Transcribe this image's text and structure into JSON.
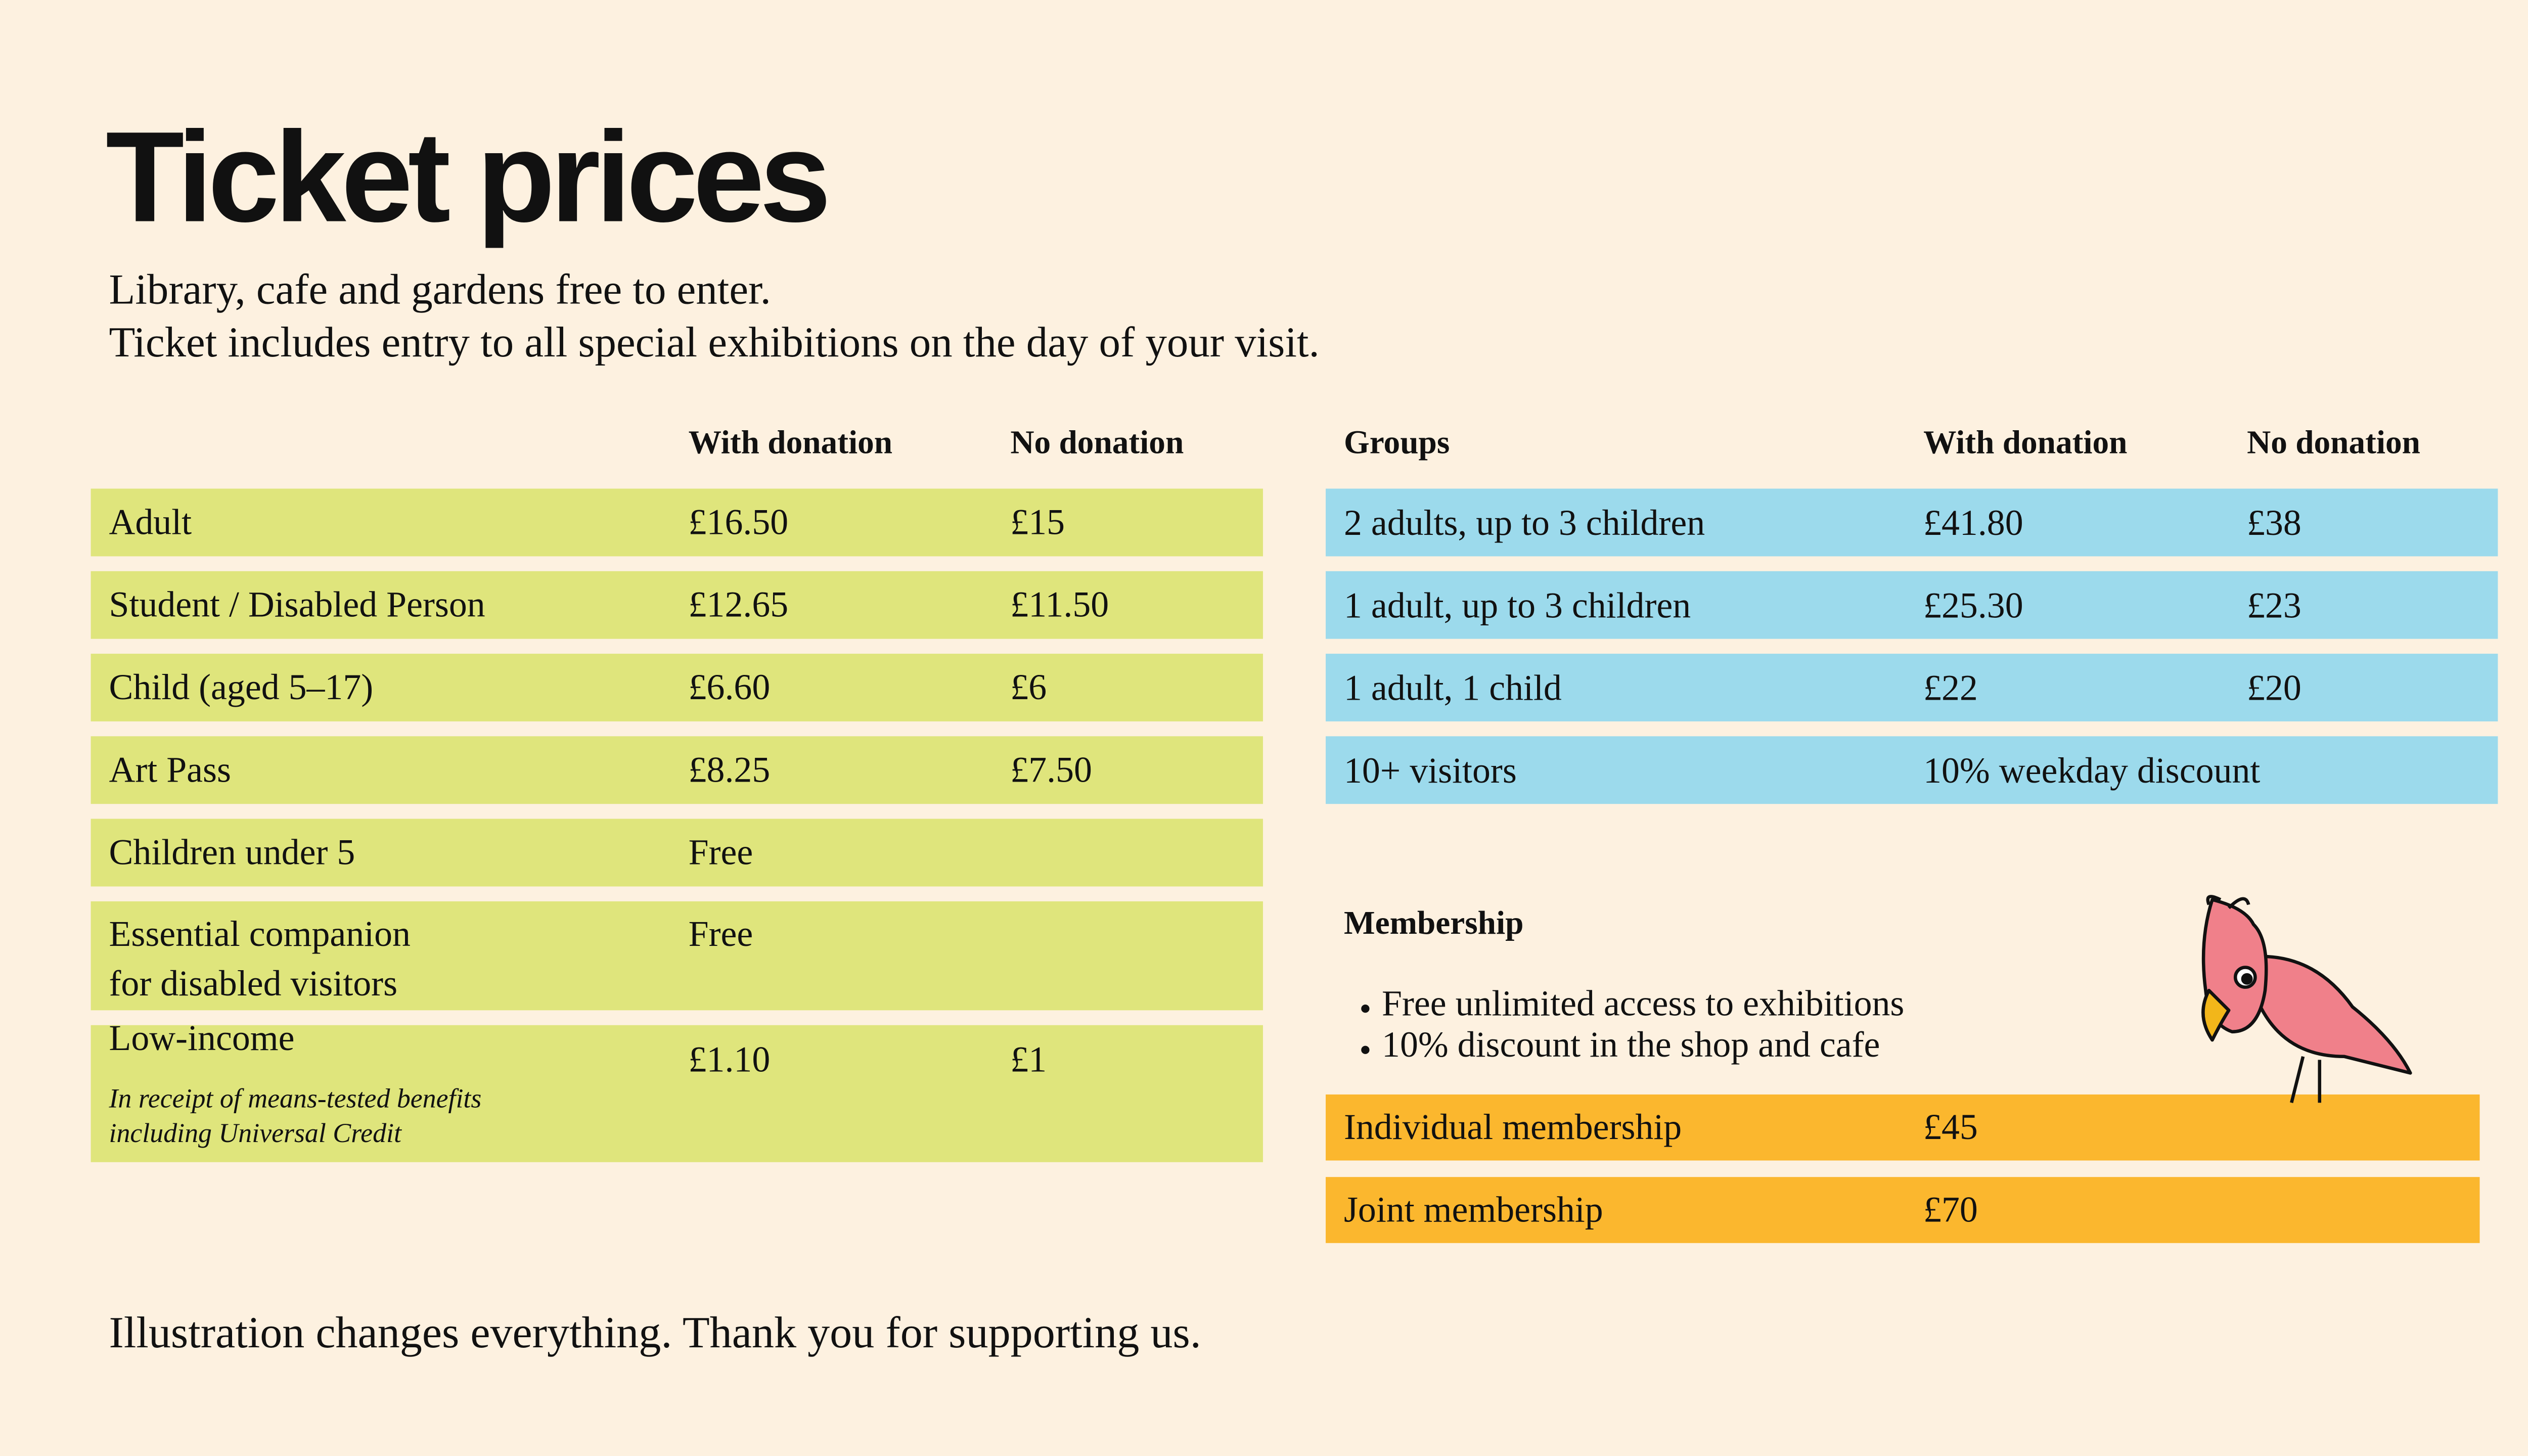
{
  "title": "Ticket prices",
  "intro": [
    "Library, cafe and gardens free to enter.",
    "Ticket includes entry to all special exhibitions on the day of your visit."
  ],
  "tickets": {
    "headers": [
      "With donation",
      "No donation"
    ],
    "rows": [
      {
        "label": [
          "Adult"
        ],
        "with_donation": "£16.50",
        "no_donation": "£15"
      },
      {
        "label": [
          "Student / Disabled Person"
        ],
        "with_donation": "£12.65",
        "no_donation": "£11.50"
      },
      {
        "label": [
          "Child (aged 5–17)"
        ],
        "with_donation": "£6.60",
        "no_donation": "£6"
      },
      {
        "label": [
          "Art Pass"
        ],
        "with_donation": "£8.25",
        "no_donation": "£7.50"
      },
      {
        "label": [
          "Children under 5"
        ],
        "with_donation": "Free"
      },
      {
        "label": [
          "Essential companion",
          "for disabled visitors"
        ],
        "with_donation": "Free"
      },
      {
        "label": [
          "Low-income"
        ],
        "note": [
          "In receipt of means-tested benefits",
          "including Universal Credit"
        ],
        "with_donation": "£1.10",
        "no_donation": "£1"
      }
    ]
  },
  "groups": {
    "headers": [
      "Groups",
      "With donation",
      "No donation"
    ],
    "rows": [
      {
        "label": "2 adults, up to 3 children",
        "with_donation": "£41.80",
        "no_donation": "£38"
      },
      {
        "label": "1 adult, up to 3 children",
        "with_donation": "£25.30",
        "no_donation": "£23"
      },
      {
        "label": "1 adult, 1 child",
        "with_donation": "£22",
        "no_donation": "£20"
      },
      {
        "label": "10+ visitors",
        "with_donation": "10% weekday discount"
      }
    ]
  },
  "membership": {
    "title": "Membership",
    "benefits": [
      "Free unlimited access to exhibitions",
      "10% discount in the shop and cafe"
    ],
    "rows": [
      {
        "label": "Individual membership",
        "price": "£45"
      },
      {
        "label": "Joint membership",
        "price": "£70"
      }
    ]
  },
  "footer": "Illustration changes everything. Thank you for supporting us."
}
